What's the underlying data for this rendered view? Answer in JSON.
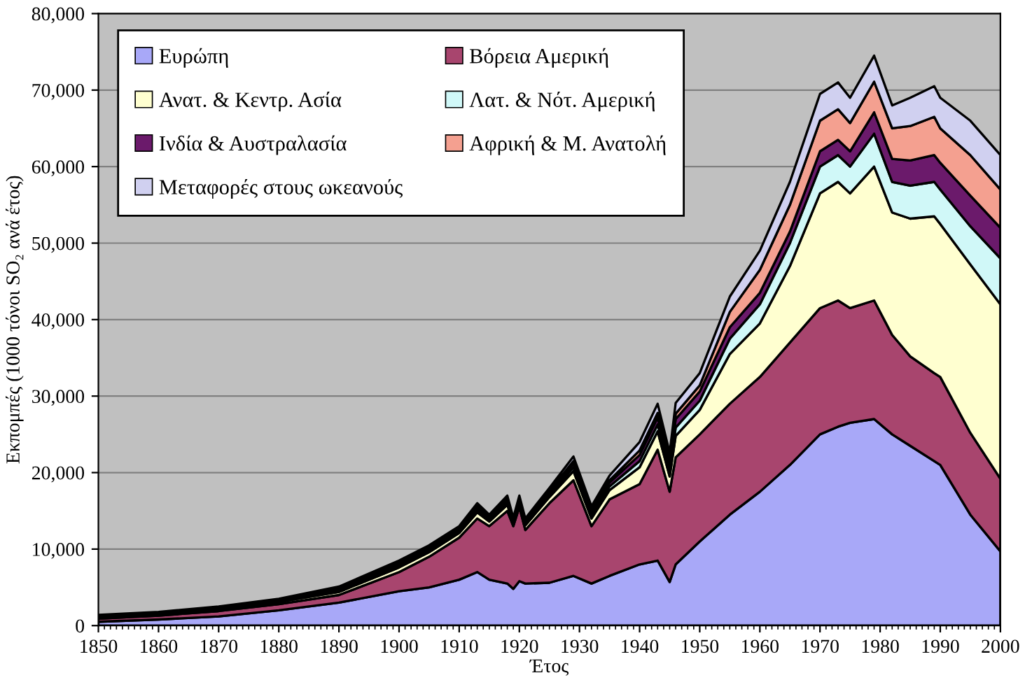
{
  "chart_data": {
    "type": "area",
    "stacked": true,
    "xlabel": "Έτος",
    "ylabel": "Εκπομπές (1000 τόνοι SO₂ ανά έτος)",
    "x": [
      1850,
      1860,
      1870,
      1880,
      1890,
      1900,
      1905,
      1910,
      1913,
      1915,
      1918,
      1919,
      1920,
      1921,
      1925,
      1929,
      1932,
      1935,
      1940,
      1943,
      1945,
      1946,
      1950,
      1955,
      1960,
      1965,
      1970,
      1973,
      1975,
      1979,
      1982,
      1985,
      1989,
      1990,
      1995,
      2000
    ],
    "xlim": [
      1850,
      2000
    ],
    "xticks": [
      1850,
      1860,
      1870,
      1880,
      1890,
      1900,
      1910,
      1920,
      1930,
      1940,
      1950,
      1960,
      1970,
      1980,
      1990,
      2000
    ],
    "ylim": [
      0,
      80000
    ],
    "yticks": [
      {
        "value": 0,
        "label": "0"
      },
      {
        "value": 10000,
        "label": "10,000"
      },
      {
        "value": 20000,
        "label": "20,000"
      },
      {
        "value": 30000,
        "label": "30,000"
      },
      {
        "value": 40000,
        "label": "40,000"
      },
      {
        "value": 50000,
        "label": "50,000"
      },
      {
        "value": 60000,
        "label": "60,000"
      },
      {
        "value": 70000,
        "label": "70,000"
      },
      {
        "value": 80000,
        "label": "80,000"
      }
    ],
    "grid": "y",
    "legend": "top left",
    "series": [
      {
        "name": "Ευρώπη",
        "color": "#a8a8f8",
        "values": [
          500,
          800,
          1200,
          2000,
          3000,
          4500,
          5000,
          6000,
          7000,
          6000,
          5500,
          4800,
          5800,
          5500,
          5600,
          6500,
          5500,
          6500,
          8000,
          8500,
          5700,
          8000,
          11000,
          14500,
          17500,
          21000,
          25000,
          26000,
          26500,
          27000,
          25000,
          23500,
          21500,
          21000,
          14500,
          9700
        ]
      },
      {
        "name": "Βόρεια Αμερική",
        "color": "#a8456e",
        "values": [
          400,
          500,
          700,
          800,
          1000,
          2500,
          4000,
          5500,
          7000,
          7000,
          9500,
          8200,
          9700,
          7000,
          10400,
          12500,
          7500,
          10000,
          10500,
          14500,
          11800,
          14000,
          14000,
          14500,
          15000,
          16000,
          16500,
          16500,
          15000,
          15500,
          13000,
          11700,
          11500,
          11500,
          10700,
          9500
        ]
      },
      {
        "name": "Ανατ. & Κεντρ. Ασία",
        "color": "#ffffd0",
        "values": [
          100,
          100,
          200,
          300,
          400,
          600,
          600,
          600,
          800,
          600,
          800,
          400,
          600,
          600,
          800,
          1200,
          1000,
          1200,
          2200,
          2400,
          2000,
          2800,
          3200,
          6500,
          7000,
          10000,
          15000,
          15500,
          15000,
          17500,
          16000,
          18000,
          20500,
          20000,
          22000,
          22800
        ]
      },
      {
        "name": "Λατ. & Νότ. Αμερική",
        "color": "#d0f8f8",
        "values": [
          100,
          100,
          100,
          100,
          200,
          200,
          200,
          200,
          300,
          200,
          300,
          200,
          200,
          200,
          300,
          500,
          400,
          500,
          800,
          900,
          800,
          1100,
          1200,
          2000,
          2500,
          3000,
          3500,
          3500,
          3500,
          4300,
          4000,
          4300,
          4500,
          4500,
          5000,
          6000
        ]
      },
      {
        "name": "Ινδία & Αυστραλασία",
        "color": "#6b1a6b",
        "values": [
          100,
          100,
          100,
          100,
          200,
          200,
          200,
          200,
          300,
          200,
          300,
          200,
          200,
          200,
          300,
          500,
          400,
          500,
          800,
          900,
          800,
          1100,
          1200,
          1500,
          1500,
          1500,
          2000,
          2000,
          2000,
          2800,
          3000,
          3300,
          3500,
          3500,
          4000,
          4000
        ]
      },
      {
        "name": "Αφρική & Μ. Ανατολή",
        "color": "#f4a090",
        "values": [
          100,
          100,
          100,
          100,
          100,
          200,
          200,
          200,
          200,
          200,
          200,
          100,
          200,
          200,
          200,
          300,
          300,
          300,
          600,
          600,
          500,
          700,
          800,
          2000,
          3000,
          3500,
          4000,
          4000,
          3700,
          4000,
          4000,
          4500,
          5000,
          4500,
          5300,
          5000
        ]
      },
      {
        "name": "Μεταφορές στους ωκεανούς",
        "color": "#d0d0f0",
        "values": [
          100,
          100,
          100,
          100,
          200,
          300,
          300,
          300,
          400,
          300,
          400,
          200,
          300,
          300,
          400,
          600,
          500,
          600,
          1100,
          1200,
          1000,
          1400,
          1600,
          2000,
          2500,
          3000,
          3500,
          3500,
          3300,
          3400,
          3000,
          3700,
          4000,
          4000,
          4500,
          4500
        ]
      }
    ]
  }
}
